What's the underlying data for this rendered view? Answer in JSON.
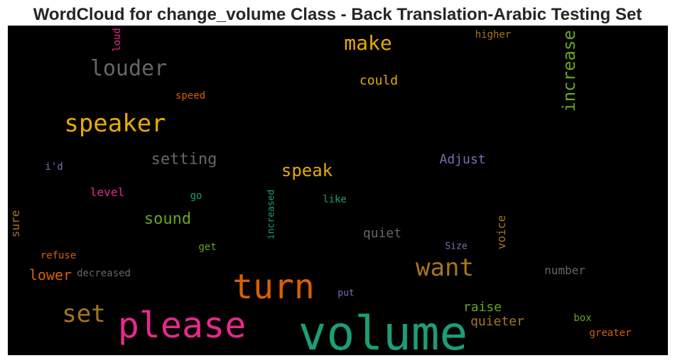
{
  "chart_data": {
    "type": "wordcloud",
    "title": "WordCloud for change_volume Class - Back Translation-Arabic Testing Set",
    "background": "#000000",
    "words": [
      {
        "text": "volume",
        "color": "#1b9e77",
        "vertical": false
      },
      {
        "text": "please",
        "color": "#e7298a",
        "vertical": false
      },
      {
        "text": "turn",
        "color": "#d95f02",
        "vertical": false
      },
      {
        "text": "want",
        "color": "#a6761d",
        "vertical": false
      },
      {
        "text": "set",
        "color": "#a6761d",
        "vertical": false
      },
      {
        "text": "speaker",
        "color": "#e6ab02",
        "vertical": false
      },
      {
        "text": "louder",
        "color": "#666666",
        "vertical": false
      },
      {
        "text": "increase",
        "color": "#66a61e",
        "vertical": true
      },
      {
        "text": "make",
        "color": "#e6ab02",
        "vertical": false
      },
      {
        "text": "speak",
        "color": "#e6ab02",
        "vertical": false
      },
      {
        "text": "setting",
        "color": "#666666",
        "vertical": false
      },
      {
        "text": "sound",
        "color": "#66a61e",
        "vertical": false
      },
      {
        "text": "lower",
        "color": "#d95f02",
        "vertical": false
      },
      {
        "text": "could",
        "color": "#e6ab02",
        "vertical": false
      },
      {
        "text": "Adjust",
        "color": "#7570b3",
        "vertical": false
      },
      {
        "text": "quiet",
        "color": "#666666",
        "vertical": false
      },
      {
        "text": "raise",
        "color": "#66a61e",
        "vertical": false
      },
      {
        "text": "quieter",
        "color": "#a6761d",
        "vertical": false
      },
      {
        "text": "number",
        "color": "#666666",
        "vertical": false
      },
      {
        "text": "voice",
        "color": "#a6761d",
        "vertical": true
      },
      {
        "text": "level",
        "color": "#e7298a",
        "vertical": false
      },
      {
        "text": "sure",
        "color": "#a6761d",
        "vertical": true
      },
      {
        "text": "speed",
        "color": "#d95f02",
        "vertical": false
      },
      {
        "text": "higher",
        "color": "#a6761d",
        "vertical": false
      },
      {
        "text": "loud",
        "color": "#e7298a",
        "vertical": true
      },
      {
        "text": "i'd",
        "color": "#7570b3",
        "vertical": false
      },
      {
        "text": "go",
        "color": "#1b9e77",
        "vertical": false
      },
      {
        "text": "like",
        "color": "#1b9e77",
        "vertical": false
      },
      {
        "text": "increased",
        "color": "#1b9e77",
        "vertical": true
      },
      {
        "text": "get",
        "color": "#66a61e",
        "vertical": false
      },
      {
        "text": "refuse",
        "color": "#d95f02",
        "vertical": false
      },
      {
        "text": "decreased",
        "color": "#666666",
        "vertical": false
      },
      {
        "text": "Size",
        "color": "#7570b3",
        "vertical": false
      },
      {
        "text": "put",
        "color": "#7570b3",
        "vertical": false
      },
      {
        "text": "box",
        "color": "#66a61e",
        "vertical": false
      },
      {
        "text": "greater",
        "color": "#d95f02",
        "vertical": false
      }
    ]
  }
}
